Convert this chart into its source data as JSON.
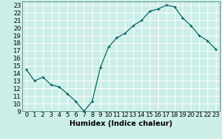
{
  "x": [
    0,
    1,
    2,
    3,
    4,
    5,
    6,
    7,
    8,
    9,
    10,
    11,
    12,
    13,
    14,
    15,
    16,
    17,
    18,
    19,
    20,
    21,
    22,
    23
  ],
  "y": [
    14.5,
    13.0,
    13.5,
    12.5,
    12.2,
    11.3,
    10.3,
    9.0,
    10.3,
    14.8,
    17.5,
    18.7,
    19.3,
    20.3,
    21.0,
    22.2,
    22.5,
    23.0,
    22.8,
    21.3,
    20.3,
    19.0,
    18.3,
    17.2
  ],
  "line_color": "#006060",
  "marker": "+",
  "marker_color": "#006060",
  "xlabel": "Humidex (Indice chaleur)",
  "ylim": [
    9,
    23.5
  ],
  "xlim": [
    -0.5,
    23.5
  ],
  "yticks": [
    9,
    10,
    11,
    12,
    13,
    14,
    15,
    16,
    17,
    18,
    19,
    20,
    21,
    22,
    23
  ],
  "xticks": [
    0,
    1,
    2,
    3,
    4,
    5,
    6,
    7,
    8,
    9,
    10,
    11,
    12,
    13,
    14,
    15,
    16,
    17,
    18,
    19,
    20,
    21,
    22,
    23
  ],
  "bg_color": "#cceee8",
  "grid_color": "#ffffff",
  "tick_fontsize": 6.5,
  "xlabel_fontsize": 7.5,
  "xlabel_bold": true,
  "fig_width": 3.2,
  "fig_height": 2.0,
  "dpi": 100
}
